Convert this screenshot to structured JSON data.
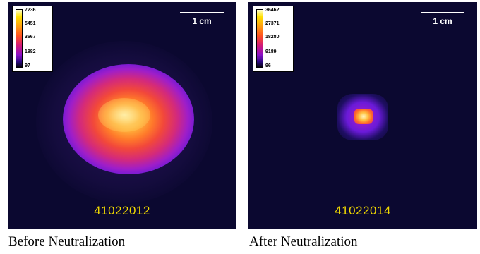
{
  "panels": [
    {
      "shot_id": "41022012",
      "caption": "Before Neutralization",
      "scale_label": "1 cm",
      "colorbar_ticks": [
        "7236",
        "5451",
        "3667",
        "1882",
        "97"
      ]
    },
    {
      "shot_id": "41022014",
      "caption": "After Neutralization",
      "scale_label": "1 cm",
      "colorbar_ticks": [
        "36462",
        "27371",
        "18280",
        "9189",
        "96"
      ]
    }
  ]
}
